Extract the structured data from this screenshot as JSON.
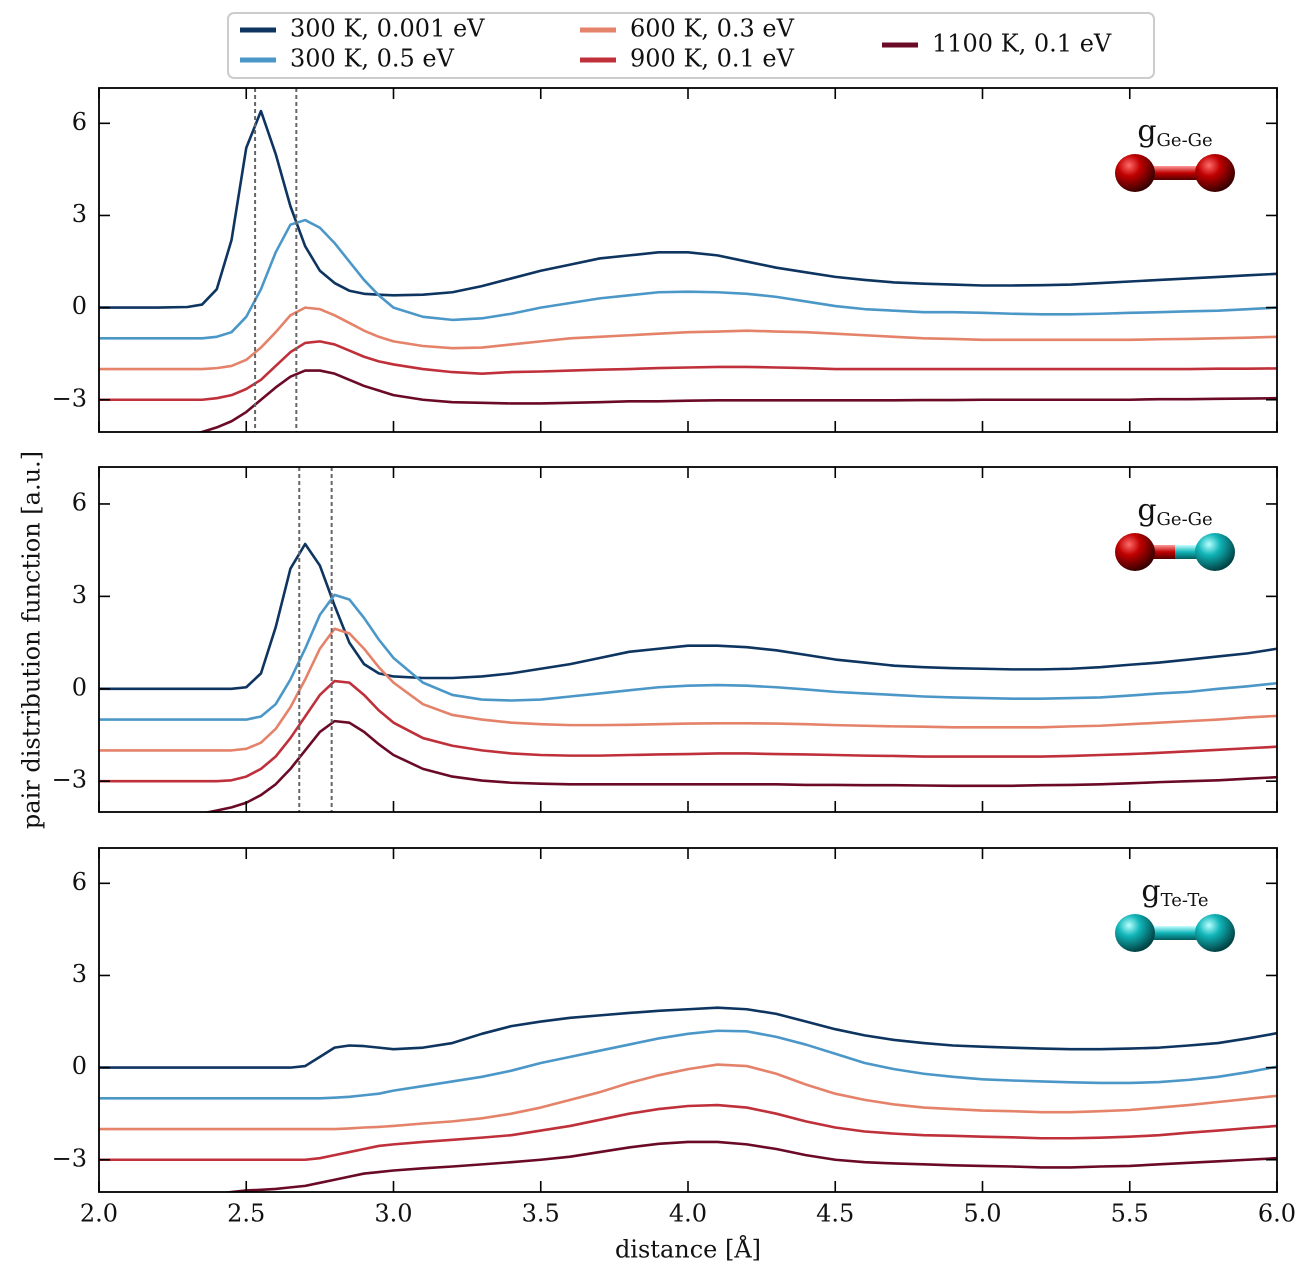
{
  "chart_data": [
    {
      "type": "line",
      "ylabel": "pair distribution function [a.u.]",
      "annotation": "g",
      "annotation_sub": "Ge-Ge",
      "vlines": [
        2.53,
        2.67
      ],
      "xlim": [
        2.0,
        6.0
      ],
      "ylim": [
        -4.05,
        7.15
      ],
      "show_xticklabels": false,
      "xticks": [
        2,
        2.5,
        3,
        3.5,
        4,
        4.5,
        5,
        5.5,
        6
      ],
      "yticks": [
        {
          "value": -3,
          "label": "−3"
        },
        0,
        3,
        6
      ],
      "x": [
        2.0,
        2.1,
        2.2,
        2.3,
        2.35,
        2.4,
        2.45,
        2.5,
        2.55,
        2.6,
        2.65,
        2.7,
        2.75,
        2.8,
        2.85,
        2.9,
        2.95,
        3.0,
        3.1,
        3.2,
        3.3,
        3.4,
        3.5,
        3.6,
        3.7,
        3.8,
        3.9,
        4.0,
        4.1,
        4.2,
        4.3,
        4.4,
        4.5,
        4.6,
        4.7,
        4.8,
        4.9,
        5.0,
        5.1,
        5.2,
        5.3,
        5.4,
        5.5,
        5.6,
        5.7,
        5.8,
        5.9,
        6.0
      ],
      "series": [
        {
          "name": "300 K, 0.001 eV",
          "color": "#0e3460",
          "values": [
            0,
            0,
            0,
            0.02,
            0.1,
            0.6,
            2.2,
            5.2,
            6.4,
            5.0,
            3.3,
            2.0,
            1.2,
            0.8,
            0.55,
            0.45,
            0.42,
            0.4,
            0.42,
            0.5,
            0.7,
            0.95,
            1.2,
            1.4,
            1.6,
            1.7,
            1.8,
            1.8,
            1.7,
            1.5,
            1.3,
            1.15,
            1.0,
            0.9,
            0.82,
            0.78,
            0.75,
            0.72,
            0.72,
            0.73,
            0.75,
            0.8,
            0.85,
            0.9,
            0.95,
            1.0,
            1.05,
            1.1
          ]
        },
        {
          "name": "300 K, 0.5 eV",
          "color": "#4b97c8",
          "values": [
            -1,
            -1,
            -1,
            -1,
            -1,
            -0.95,
            -0.8,
            -0.3,
            0.6,
            1.8,
            2.7,
            2.85,
            2.6,
            2.1,
            1.5,
            0.9,
            0.4,
            0.0,
            -0.3,
            -0.4,
            -0.35,
            -0.2,
            0.0,
            0.15,
            0.3,
            0.4,
            0.5,
            0.52,
            0.5,
            0.45,
            0.35,
            0.2,
            0.05,
            -0.05,
            -0.1,
            -0.15,
            -0.15,
            -0.17,
            -0.2,
            -0.22,
            -0.22,
            -0.2,
            -0.17,
            -0.15,
            -0.12,
            -0.1,
            -0.05,
            0.0
          ]
        },
        {
          "name": "600 K, 0.3 eV",
          "color": "#e4826a",
          "values": [
            -2,
            -2,
            -2,
            -2,
            -2,
            -1.97,
            -1.9,
            -1.7,
            -1.3,
            -0.8,
            -0.25,
            0.0,
            -0.05,
            -0.25,
            -0.5,
            -0.75,
            -0.95,
            -1.1,
            -1.25,
            -1.32,
            -1.3,
            -1.2,
            -1.1,
            -1.0,
            -0.95,
            -0.9,
            -0.85,
            -0.8,
            -0.78,
            -0.75,
            -0.78,
            -0.8,
            -0.85,
            -0.9,
            -0.95,
            -1.0,
            -1.02,
            -1.05,
            -1.05,
            -1.05,
            -1.05,
            -1.05,
            -1.05,
            -1.03,
            -1.02,
            -1.0,
            -0.98,
            -0.95
          ]
        },
        {
          "name": "900 K, 0.1 eV",
          "color": "#bf303a",
          "values": [
            -3,
            -3,
            -3,
            -3,
            -3,
            -2.95,
            -2.85,
            -2.65,
            -2.35,
            -1.9,
            -1.45,
            -1.15,
            -1.1,
            -1.2,
            -1.4,
            -1.6,
            -1.75,
            -1.85,
            -2.0,
            -2.1,
            -2.15,
            -2.1,
            -2.08,
            -2.05,
            -2.02,
            -2.0,
            -1.97,
            -1.95,
            -1.93,
            -1.93,
            -1.95,
            -1.97,
            -2.0,
            -2.0,
            -2.0,
            -2.0,
            -2.0,
            -2.0,
            -2.0,
            -2.0,
            -2.0,
            -2.0,
            -2.0,
            -2.0,
            -2.0,
            -1.99,
            -1.99,
            -1.98
          ]
        },
        {
          "name": "1100 K, 0.1 eV",
          "color": "#6a0a26",
          "values": [
            -4.3,
            -4.3,
            -4.25,
            -4.15,
            -4.05,
            -3.9,
            -3.7,
            -3.4,
            -3.0,
            -2.6,
            -2.25,
            -2.05,
            -2.05,
            -2.15,
            -2.35,
            -2.55,
            -2.7,
            -2.85,
            -3.0,
            -3.08,
            -3.1,
            -3.12,
            -3.12,
            -3.1,
            -3.08,
            -3.05,
            -3.05,
            -3.03,
            -3.02,
            -3.02,
            -3.02,
            -3.02,
            -3.02,
            -3.02,
            -3.02,
            -3.01,
            -3.01,
            -3.0,
            -3.0,
            -3.0,
            -3.0,
            -3.0,
            -3.0,
            -2.98,
            -2.98,
            -2.97,
            -2.96,
            -2.95
          ]
        }
      ]
    },
    {
      "type": "line",
      "annotation": "g",
      "annotation_sub": "Ge-Ge",
      "vlines": [
        2.68,
        2.79
      ],
      "xlim": [
        2.0,
        6.0
      ],
      "ylim": [
        -4.0,
        7.2
      ],
      "show_xticklabels": false,
      "xticks": [
        2,
        2.5,
        3,
        3.5,
        4,
        4.5,
        5,
        5.5,
        6
      ],
      "yticks": [
        {
          "value": -3,
          "label": "−3"
        },
        0,
        3,
        6
      ],
      "x": [
        2.0,
        2.1,
        2.2,
        2.3,
        2.35,
        2.4,
        2.45,
        2.5,
        2.55,
        2.6,
        2.65,
        2.7,
        2.75,
        2.8,
        2.85,
        2.9,
        2.95,
        3.0,
        3.1,
        3.2,
        3.3,
        3.4,
        3.5,
        3.6,
        3.7,
        3.8,
        3.9,
        4.0,
        4.1,
        4.2,
        4.3,
        4.4,
        4.5,
        4.6,
        4.7,
        4.8,
        4.9,
        5.0,
        5.1,
        5.2,
        5.3,
        5.4,
        5.5,
        5.6,
        5.7,
        5.8,
        5.9,
        6.0
      ],
      "series": [
        {
          "name": "300 K, 0.001 eV",
          "color": "#0e3460",
          "values": [
            0,
            0,
            0,
            0,
            0,
            0,
            0,
            0.05,
            0.5,
            2.0,
            3.9,
            4.7,
            4.0,
            2.7,
            1.5,
            0.8,
            0.5,
            0.4,
            0.35,
            0.35,
            0.4,
            0.5,
            0.65,
            0.8,
            1.0,
            1.2,
            1.3,
            1.4,
            1.4,
            1.35,
            1.25,
            1.1,
            0.95,
            0.85,
            0.75,
            0.7,
            0.67,
            0.65,
            0.63,
            0.63,
            0.65,
            0.7,
            0.78,
            0.85,
            0.95,
            1.05,
            1.15,
            1.3
          ]
        },
        {
          "name": "300 K, 0.5 eV",
          "color": "#4b97c8",
          "values": [
            -1,
            -1,
            -1,
            -1,
            -1,
            -1,
            -1,
            -1,
            -0.9,
            -0.5,
            0.3,
            1.3,
            2.4,
            3.05,
            2.9,
            2.3,
            1.6,
            1.0,
            0.2,
            -0.2,
            -0.35,
            -0.38,
            -0.35,
            -0.25,
            -0.15,
            -0.05,
            0.05,
            0.1,
            0.12,
            0.1,
            0.05,
            -0.02,
            -0.1,
            -0.15,
            -0.2,
            -0.25,
            -0.28,
            -0.3,
            -0.32,
            -0.32,
            -0.3,
            -0.28,
            -0.22,
            -0.15,
            -0.1,
            0.0,
            0.08,
            0.18
          ]
        },
        {
          "name": "600 K, 0.3 eV",
          "color": "#e4826a",
          "values": [
            -2,
            -2,
            -2,
            -2,
            -2,
            -2,
            -2,
            -1.95,
            -1.75,
            -1.3,
            -0.6,
            0.3,
            1.3,
            1.95,
            1.8,
            1.3,
            0.7,
            0.2,
            -0.5,
            -0.85,
            -1.0,
            -1.1,
            -1.15,
            -1.18,
            -1.18,
            -1.17,
            -1.15,
            -1.13,
            -1.12,
            -1.12,
            -1.13,
            -1.15,
            -1.18,
            -1.2,
            -1.22,
            -1.23,
            -1.25,
            -1.25,
            -1.25,
            -1.25,
            -1.22,
            -1.2,
            -1.15,
            -1.1,
            -1.05,
            -1.0,
            -0.93,
            -0.88
          ]
        },
        {
          "name": "900 K, 0.1 eV",
          "color": "#bf303a",
          "values": [
            -3,
            -3,
            -3,
            -3,
            -3,
            -3,
            -2.97,
            -2.85,
            -2.6,
            -2.2,
            -1.6,
            -0.9,
            -0.2,
            0.25,
            0.2,
            -0.2,
            -0.7,
            -1.1,
            -1.6,
            -1.85,
            -2.0,
            -2.1,
            -2.15,
            -2.17,
            -2.17,
            -2.15,
            -2.13,
            -2.12,
            -2.1,
            -2.1,
            -2.12,
            -2.13,
            -2.15,
            -2.17,
            -2.18,
            -2.2,
            -2.2,
            -2.2,
            -2.2,
            -2.2,
            -2.18,
            -2.15,
            -2.12,
            -2.08,
            -2.03,
            -1.98,
            -1.93,
            -1.88
          ]
        },
        {
          "name": "1100 K, 0.1 eV",
          "color": "#6a0a26",
          "values": [
            -4.3,
            -4.3,
            -4.25,
            -4.15,
            -4.05,
            -3.95,
            -3.85,
            -3.7,
            -3.45,
            -3.1,
            -2.6,
            -2.0,
            -1.4,
            -1.05,
            -1.1,
            -1.4,
            -1.8,
            -2.15,
            -2.6,
            -2.85,
            -2.98,
            -3.05,
            -3.08,
            -3.1,
            -3.1,
            -3.1,
            -3.1,
            -3.1,
            -3.1,
            -3.1,
            -3.1,
            -3.12,
            -3.12,
            -3.13,
            -3.13,
            -3.14,
            -3.15,
            -3.15,
            -3.15,
            -3.13,
            -3.12,
            -3.1,
            -3.07,
            -3.03,
            -3.0,
            -2.97,
            -2.92,
            -2.87
          ]
        }
      ]
    },
    {
      "type": "line",
      "xlabel": "distance [Å]",
      "annotation": "g",
      "annotation_sub": "Te-Te",
      "vlines": [],
      "xlim": [
        2.0,
        6.0
      ],
      "ylim": [
        -4.05,
        7.15
      ],
      "show_xticklabels": true,
      "xticks": [
        {
          "value": 2,
          "label": "2.0"
        },
        2.5,
        {
          "value": 3,
          "label": "3.0"
        },
        3.5,
        {
          "value": 4,
          "label": "4.0"
        },
        4.5,
        {
          "value": 5,
          "label": "5.0"
        },
        5.5,
        {
          "value": 6,
          "label": "6.0"
        }
      ],
      "yticks": [
        {
          "value": -3,
          "label": "−3"
        },
        0,
        3,
        6
      ],
      "x": [
        2.0,
        2.1,
        2.2,
        2.3,
        2.35,
        2.4,
        2.45,
        2.5,
        2.55,
        2.6,
        2.65,
        2.7,
        2.75,
        2.8,
        2.85,
        2.9,
        2.95,
        3.0,
        3.1,
        3.2,
        3.3,
        3.4,
        3.5,
        3.6,
        3.7,
        3.8,
        3.9,
        4.0,
        4.1,
        4.2,
        4.3,
        4.4,
        4.5,
        4.6,
        4.7,
        4.8,
        4.9,
        5.0,
        5.1,
        5.2,
        5.3,
        5.4,
        5.5,
        5.6,
        5.7,
        5.8,
        5.9,
        6.0
      ],
      "series": [
        {
          "name": "300 K, 0.001 eV",
          "color": "#0e3460",
          "values": [
            0,
            0,
            0,
            0,
            0,
            0,
            0,
            0,
            0,
            0,
            0,
            0.05,
            0.35,
            0.65,
            0.72,
            0.7,
            0.65,
            0.6,
            0.65,
            0.8,
            1.1,
            1.35,
            1.5,
            1.62,
            1.7,
            1.78,
            1.85,
            1.9,
            1.95,
            1.9,
            1.75,
            1.5,
            1.25,
            1.05,
            0.9,
            0.8,
            0.72,
            0.68,
            0.65,
            0.62,
            0.6,
            0.6,
            0.62,
            0.65,
            0.72,
            0.8,
            0.95,
            1.12
          ]
        },
        {
          "name": "300 K, 0.5 eV",
          "color": "#4b97c8",
          "values": [
            -1,
            -1,
            -1,
            -1,
            -1,
            -1,
            -1,
            -1,
            -1,
            -1,
            -1,
            -1,
            -1,
            -0.98,
            -0.95,
            -0.9,
            -0.85,
            -0.75,
            -0.6,
            -0.45,
            -0.3,
            -0.1,
            0.15,
            0.35,
            0.55,
            0.75,
            0.95,
            1.1,
            1.2,
            1.18,
            1.0,
            0.75,
            0.45,
            0.15,
            -0.05,
            -0.2,
            -0.3,
            -0.38,
            -0.42,
            -0.45,
            -0.48,
            -0.5,
            -0.5,
            -0.47,
            -0.4,
            -0.3,
            -0.15,
            0.03
          ]
        },
        {
          "name": "600 K, 0.3 eV",
          "color": "#e4826a",
          "values": [
            -2,
            -2,
            -2,
            -2,
            -2,
            -2,
            -2,
            -2,
            -2,
            -2,
            -2,
            -2,
            -2,
            -2,
            -1.98,
            -1.95,
            -1.93,
            -1.9,
            -1.82,
            -1.75,
            -1.65,
            -1.5,
            -1.3,
            -1.05,
            -0.8,
            -0.5,
            -0.25,
            -0.05,
            0.1,
            0.05,
            -0.2,
            -0.55,
            -0.85,
            -1.05,
            -1.2,
            -1.3,
            -1.35,
            -1.4,
            -1.42,
            -1.45,
            -1.45,
            -1.42,
            -1.38,
            -1.3,
            -1.22,
            -1.12,
            -1.02,
            -0.92
          ]
        },
        {
          "name": "900 K, 0.1 eV",
          "color": "#bf303a",
          "values": [
            -3,
            -3,
            -3,
            -3,
            -3,
            -3,
            -3,
            -3,
            -3,
            -3,
            -3,
            -3,
            -2.95,
            -2.85,
            -2.75,
            -2.65,
            -2.55,
            -2.5,
            -2.42,
            -2.35,
            -2.28,
            -2.2,
            -2.05,
            -1.9,
            -1.7,
            -1.5,
            -1.35,
            -1.25,
            -1.22,
            -1.3,
            -1.5,
            -1.75,
            -1.95,
            -2.08,
            -2.15,
            -2.2,
            -2.22,
            -2.25,
            -2.27,
            -2.3,
            -2.3,
            -2.28,
            -2.25,
            -2.2,
            -2.12,
            -2.05,
            -1.97,
            -1.9
          ]
        },
        {
          "name": "1100 K, 0.1 eV",
          "color": "#6a0a26",
          "values": [
            -4.3,
            -4.3,
            -4.28,
            -4.22,
            -4.18,
            -4.12,
            -4.05,
            -4.0,
            -3.98,
            -3.95,
            -3.9,
            -3.85,
            -3.75,
            -3.65,
            -3.55,
            -3.45,
            -3.4,
            -3.35,
            -3.28,
            -3.22,
            -3.15,
            -3.08,
            -3.0,
            -2.9,
            -2.75,
            -2.6,
            -2.48,
            -2.42,
            -2.42,
            -2.5,
            -2.65,
            -2.85,
            -3.0,
            -3.08,
            -3.12,
            -3.15,
            -3.18,
            -3.2,
            -3.22,
            -3.25,
            -3.25,
            -3.22,
            -3.2,
            -3.15,
            -3.1,
            -3.05,
            -3.0,
            -2.95
          ]
        }
      ]
    }
  ]
}
